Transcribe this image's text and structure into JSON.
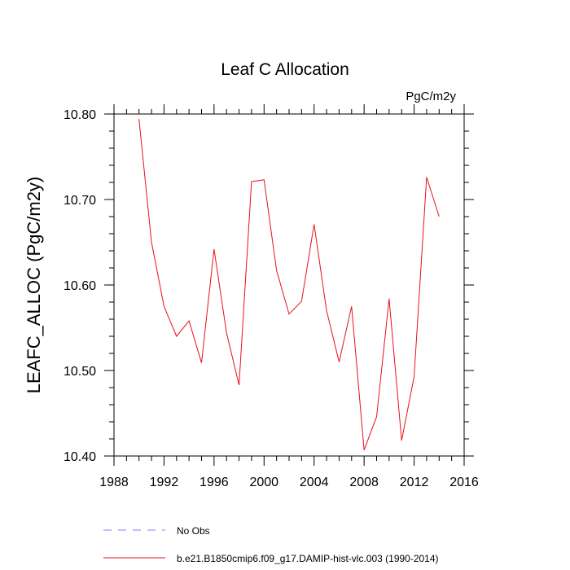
{
  "chart_data": {
    "type": "line",
    "title": "Leaf C Allocation",
    "units_label": "PgC/m2y",
    "xlabel": "",
    "ylabel": "LEAFC_ALLOC  (PgC/m2y)",
    "xlim": [
      1988,
      2016
    ],
    "ylim": [
      10.4,
      10.8
    ],
    "x_major_ticks": [
      1988,
      1992,
      1996,
      2000,
      2004,
      2008,
      2012,
      2016
    ],
    "x_tick_labels": [
      "1988",
      "1992",
      "1996",
      "2000",
      "2004",
      "2008",
      "2012",
      "2016"
    ],
    "y_major_ticks": [
      10.4,
      10.5,
      10.6,
      10.7,
      10.8
    ],
    "y_tick_labels": [
      "10.40",
      "10.50",
      "10.60",
      "10.70",
      "10.80"
    ],
    "grid": false,
    "legend_position": "bottom",
    "series": [
      {
        "name": "b.e21.B1850cmip6.f09_g17.DAMIP-hist-vlc.003 (1990-2014)",
        "color": "#e8101a",
        "style": "solid",
        "x": [
          1990,
          1991,
          1992,
          1993,
          1994,
          1995,
          1996,
          1997,
          1998,
          1999,
          2000,
          2001,
          2002,
          2003,
          2004,
          2005,
          2006,
          2007,
          2008,
          2009,
          2010,
          2011,
          2012,
          2013,
          2014
        ],
        "values": [
          10.794,
          10.65,
          10.575,
          10.54,
          10.558,
          10.509,
          10.642,
          10.544,
          10.483,
          10.721,
          10.723,
          10.617,
          10.566,
          10.581,
          10.671,
          10.57,
          10.51,
          10.575,
          10.407,
          10.446,
          10.584,
          10.418,
          10.493,
          10.726,
          10.68
        ]
      }
    ],
    "legend": [
      {
        "label": "No Obs",
        "color": "#8080ff",
        "style": "dashed"
      },
      {
        "label": "b.e21.B1850cmip6.f09_g17.DAMIP-hist-vlc.003 (1990-2014)",
        "color": "#e8101a",
        "style": "solid"
      }
    ]
  }
}
